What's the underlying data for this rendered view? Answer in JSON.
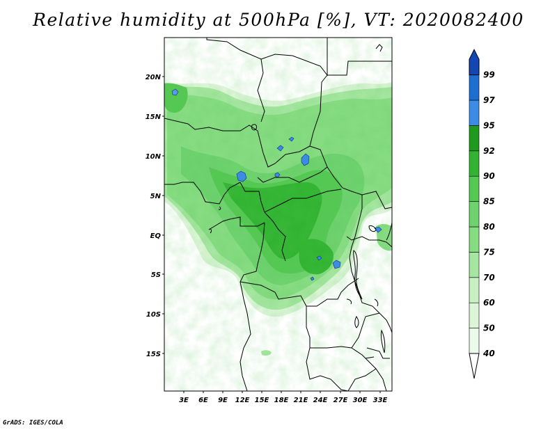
{
  "title": "Relative humidity at 500hPa [%], VT: 2020082400",
  "credit": "GrADS: IGES/COLA",
  "map": {
    "lat_labels": [
      "20N",
      "15N",
      "10N",
      "5N",
      "EQ",
      "5S",
      "10S",
      "15S"
    ],
    "lon_labels": [
      "3E",
      "6E",
      "9E",
      "12E",
      "15E",
      "18E",
      "21E",
      "24E",
      "27E",
      "30E",
      "33E"
    ]
  },
  "colorbar": {
    "levels": [
      "40",
      "50",
      "60",
      "70",
      "75",
      "80",
      "85",
      "90",
      "92",
      "95",
      "97",
      "99"
    ],
    "colors": [
      "#ebfaeb",
      "#dcf5d7",
      "#c8f0c3",
      "#a5e6a0",
      "#87dc82",
      "#6ed26e",
      "#55c853",
      "#32b432",
      "#1e9b1e",
      "#3c8ce6",
      "#1e6ed2",
      "#1446b4"
    ]
  }
}
